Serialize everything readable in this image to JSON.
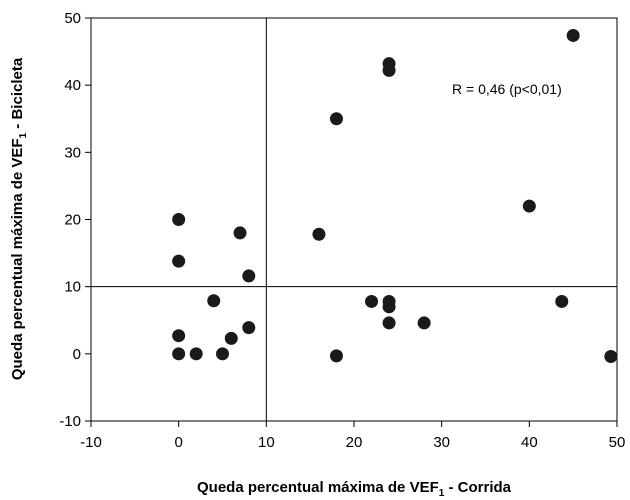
{
  "chart_data": {
    "type": "scatter",
    "title": "",
    "xlabel_main": "Queda percentual máxima de VEF",
    "xlabel_sub": "1",
    "xlabel_tail": " - Corrida",
    "ylabel_main": "Queda percentual máxima de VEF",
    "ylabel_sub": "1",
    "ylabel_tail": " - Bicicleta",
    "xlim": [
      -10,
      50
    ],
    "ylim": [
      -10,
      50
    ],
    "xticks": [
      -10,
      0,
      10,
      20,
      30,
      40,
      50
    ],
    "yticks": [
      -10,
      0,
      10,
      20,
      30,
      40,
      50
    ],
    "grid": false,
    "reference_lines": {
      "vertical_x": 10,
      "horizontal_y": 10
    },
    "annotation": "R = 0,46 (p<0,01)",
    "marker_color": "#1a1a1a",
    "points": [
      {
        "x": 0,
        "y": 20
      },
      {
        "x": 0,
        "y": 13.8
      },
      {
        "x": 0,
        "y": 2.7
      },
      {
        "x": 0,
        "y": 0
      },
      {
        "x": 2,
        "y": 0
      },
      {
        "x": 4,
        "y": 7.9
      },
      {
        "x": 5,
        "y": 0
      },
      {
        "x": 6,
        "y": 2.3
      },
      {
        "x": 7,
        "y": 18
      },
      {
        "x": 8,
        "y": 11.6
      },
      {
        "x": 8,
        "y": 3.9
      },
      {
        "x": 16,
        "y": 17.8
      },
      {
        "x": 18,
        "y": 35
      },
      {
        "x": 18,
        "y": -0.3
      },
      {
        "x": 22,
        "y": 7.8
      },
      {
        "x": 24,
        "y": 43.2
      },
      {
        "x": 24,
        "y": 42.2
      },
      {
        "x": 24,
        "y": 7.8
      },
      {
        "x": 24,
        "y": 7
      },
      {
        "x": 24,
        "y": 4.6
      },
      {
        "x": 28,
        "y": 4.6
      },
      {
        "x": 40,
        "y": 22
      },
      {
        "x": 43.7,
        "y": 7.8
      },
      {
        "x": 45,
        "y": 47.4
      },
      {
        "x": 49.3,
        "y": -0.4
      }
    ]
  }
}
